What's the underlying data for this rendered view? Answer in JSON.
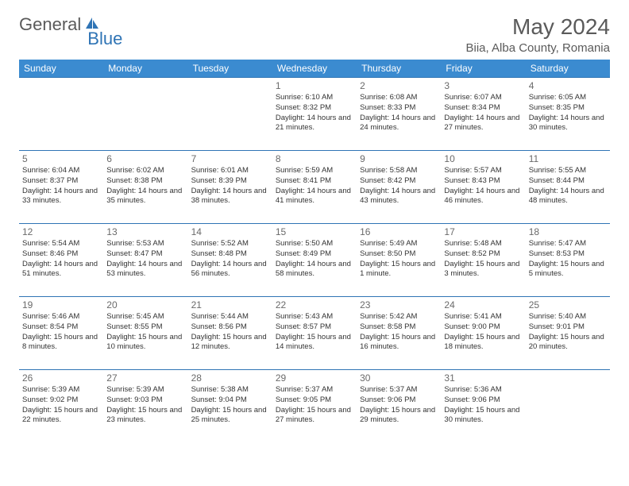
{
  "logo": {
    "text1": "General",
    "text2": "Blue",
    "color_general": "#5a5a5a",
    "color_blue": "#2f74b5"
  },
  "header": {
    "month_title": "May 2024",
    "location": "Biia, Alba County, Romania"
  },
  "weekdays": [
    "Sunday",
    "Monday",
    "Tuesday",
    "Wednesday",
    "Thursday",
    "Friday",
    "Saturday"
  ],
  "colors": {
    "header_bg": "#3b8bd0",
    "header_text": "#ffffff",
    "border": "#2f74b5",
    "text": "#333333",
    "muted": "#6a6a6a"
  },
  "weeks": [
    [
      null,
      null,
      null,
      {
        "n": "1",
        "sunrise": "Sunrise: 6:10 AM",
        "sunset": "Sunset: 8:32 PM",
        "daylight": "Daylight: 14 hours and 21 minutes."
      },
      {
        "n": "2",
        "sunrise": "Sunrise: 6:08 AM",
        "sunset": "Sunset: 8:33 PM",
        "daylight": "Daylight: 14 hours and 24 minutes."
      },
      {
        "n": "3",
        "sunrise": "Sunrise: 6:07 AM",
        "sunset": "Sunset: 8:34 PM",
        "daylight": "Daylight: 14 hours and 27 minutes."
      },
      {
        "n": "4",
        "sunrise": "Sunrise: 6:05 AM",
        "sunset": "Sunset: 8:35 PM",
        "daylight": "Daylight: 14 hours and 30 minutes."
      }
    ],
    [
      {
        "n": "5",
        "sunrise": "Sunrise: 6:04 AM",
        "sunset": "Sunset: 8:37 PM",
        "daylight": "Daylight: 14 hours and 33 minutes."
      },
      {
        "n": "6",
        "sunrise": "Sunrise: 6:02 AM",
        "sunset": "Sunset: 8:38 PM",
        "daylight": "Daylight: 14 hours and 35 minutes."
      },
      {
        "n": "7",
        "sunrise": "Sunrise: 6:01 AM",
        "sunset": "Sunset: 8:39 PM",
        "daylight": "Daylight: 14 hours and 38 minutes."
      },
      {
        "n": "8",
        "sunrise": "Sunrise: 5:59 AM",
        "sunset": "Sunset: 8:41 PM",
        "daylight": "Daylight: 14 hours and 41 minutes."
      },
      {
        "n": "9",
        "sunrise": "Sunrise: 5:58 AM",
        "sunset": "Sunset: 8:42 PM",
        "daylight": "Daylight: 14 hours and 43 minutes."
      },
      {
        "n": "10",
        "sunrise": "Sunrise: 5:57 AM",
        "sunset": "Sunset: 8:43 PM",
        "daylight": "Daylight: 14 hours and 46 minutes."
      },
      {
        "n": "11",
        "sunrise": "Sunrise: 5:55 AM",
        "sunset": "Sunset: 8:44 PM",
        "daylight": "Daylight: 14 hours and 48 minutes."
      }
    ],
    [
      {
        "n": "12",
        "sunrise": "Sunrise: 5:54 AM",
        "sunset": "Sunset: 8:46 PM",
        "daylight": "Daylight: 14 hours and 51 minutes."
      },
      {
        "n": "13",
        "sunrise": "Sunrise: 5:53 AM",
        "sunset": "Sunset: 8:47 PM",
        "daylight": "Daylight: 14 hours and 53 minutes."
      },
      {
        "n": "14",
        "sunrise": "Sunrise: 5:52 AM",
        "sunset": "Sunset: 8:48 PM",
        "daylight": "Daylight: 14 hours and 56 minutes."
      },
      {
        "n": "15",
        "sunrise": "Sunrise: 5:50 AM",
        "sunset": "Sunset: 8:49 PM",
        "daylight": "Daylight: 14 hours and 58 minutes."
      },
      {
        "n": "16",
        "sunrise": "Sunrise: 5:49 AM",
        "sunset": "Sunset: 8:50 PM",
        "daylight": "Daylight: 15 hours and 1 minute."
      },
      {
        "n": "17",
        "sunrise": "Sunrise: 5:48 AM",
        "sunset": "Sunset: 8:52 PM",
        "daylight": "Daylight: 15 hours and 3 minutes."
      },
      {
        "n": "18",
        "sunrise": "Sunrise: 5:47 AM",
        "sunset": "Sunset: 8:53 PM",
        "daylight": "Daylight: 15 hours and 5 minutes."
      }
    ],
    [
      {
        "n": "19",
        "sunrise": "Sunrise: 5:46 AM",
        "sunset": "Sunset: 8:54 PM",
        "daylight": "Daylight: 15 hours and 8 minutes."
      },
      {
        "n": "20",
        "sunrise": "Sunrise: 5:45 AM",
        "sunset": "Sunset: 8:55 PM",
        "daylight": "Daylight: 15 hours and 10 minutes."
      },
      {
        "n": "21",
        "sunrise": "Sunrise: 5:44 AM",
        "sunset": "Sunset: 8:56 PM",
        "daylight": "Daylight: 15 hours and 12 minutes."
      },
      {
        "n": "22",
        "sunrise": "Sunrise: 5:43 AM",
        "sunset": "Sunset: 8:57 PM",
        "daylight": "Daylight: 15 hours and 14 minutes."
      },
      {
        "n": "23",
        "sunrise": "Sunrise: 5:42 AM",
        "sunset": "Sunset: 8:58 PM",
        "daylight": "Daylight: 15 hours and 16 minutes."
      },
      {
        "n": "24",
        "sunrise": "Sunrise: 5:41 AM",
        "sunset": "Sunset: 9:00 PM",
        "daylight": "Daylight: 15 hours and 18 minutes."
      },
      {
        "n": "25",
        "sunrise": "Sunrise: 5:40 AM",
        "sunset": "Sunset: 9:01 PM",
        "daylight": "Daylight: 15 hours and 20 minutes."
      }
    ],
    [
      {
        "n": "26",
        "sunrise": "Sunrise: 5:39 AM",
        "sunset": "Sunset: 9:02 PM",
        "daylight": "Daylight: 15 hours and 22 minutes."
      },
      {
        "n": "27",
        "sunrise": "Sunrise: 5:39 AM",
        "sunset": "Sunset: 9:03 PM",
        "daylight": "Daylight: 15 hours and 23 minutes."
      },
      {
        "n": "28",
        "sunrise": "Sunrise: 5:38 AM",
        "sunset": "Sunset: 9:04 PM",
        "daylight": "Daylight: 15 hours and 25 minutes."
      },
      {
        "n": "29",
        "sunrise": "Sunrise: 5:37 AM",
        "sunset": "Sunset: 9:05 PM",
        "daylight": "Daylight: 15 hours and 27 minutes."
      },
      {
        "n": "30",
        "sunrise": "Sunrise: 5:37 AM",
        "sunset": "Sunset: 9:06 PM",
        "daylight": "Daylight: 15 hours and 29 minutes."
      },
      {
        "n": "31",
        "sunrise": "Sunrise: 5:36 AM",
        "sunset": "Sunset: 9:06 PM",
        "daylight": "Daylight: 15 hours and 30 minutes."
      },
      null
    ]
  ]
}
